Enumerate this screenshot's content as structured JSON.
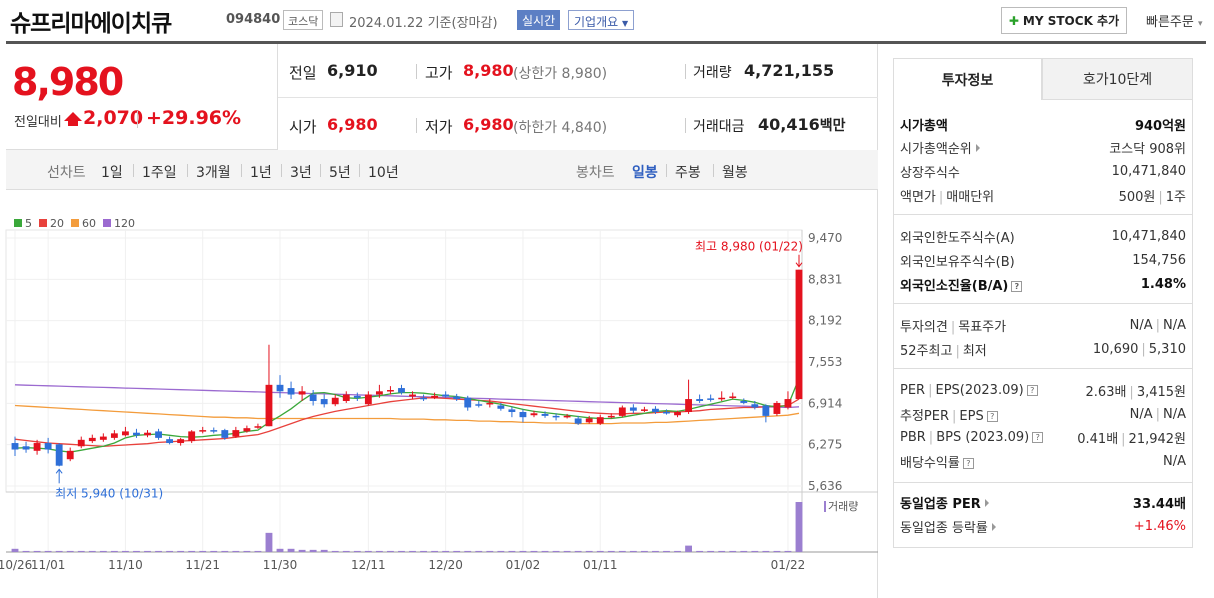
{
  "header": {
    "title": "슈프리마에이치큐",
    "code": "094840",
    "market": "코스닥",
    "date": "2024.01.22",
    "date_suffix": "기준(장마감)",
    "realtime": "실시간",
    "company_info": "기업개요",
    "mystock": "MY STOCK 추가",
    "quick_order": "빠른주문"
  },
  "price": {
    "current": "8,980",
    "prev_label": "전일대비",
    "change": "2,070",
    "pct": "+29.96%"
  },
  "info": {
    "prev_close_label": "전일",
    "prev_close": "6,910",
    "high_label": "고가",
    "high": "8,980",
    "upper_limit": "(상한가 8,980)",
    "volume_label": "거래량",
    "volume": "4,721,155",
    "open_label": "시가",
    "open": "6,980",
    "low_label": "저가",
    "low": "6,980",
    "lower_limit": "(하한가 4,840)",
    "amount_label": "거래대금",
    "amount": "40,416",
    "amount_unit": "백만"
  },
  "periods": {
    "line_label": "선차트",
    "line_items": [
      "1일",
      "1주일",
      "3개월",
      "1년",
      "3년",
      "5년",
      "10년"
    ],
    "candle_label": "봉차트",
    "candle_items": [
      "일봉",
      "주봉",
      "월봉"
    ],
    "candle_active": "일봉"
  },
  "chart_data": {
    "type": "candlestick",
    "legend": [
      {
        "name": "5",
        "color": "#3aa83a"
      },
      {
        "name": "20",
        "color": "#e8413c"
      },
      {
        "name": "60",
        "color": "#f39c3c"
      },
      {
        "name": "120",
        "color": "#9b6ad0"
      }
    ],
    "y_ticks": [
      "9,470",
      "8,831",
      "8,192",
      "7,553",
      "6,914",
      "6,275",
      "5,636"
    ],
    "ylim": [
      5636,
      9470
    ],
    "x_ticks": [
      "10/26",
      "11/01",
      "11/10",
      "11/21",
      "11/30",
      "12/11",
      "12/20",
      "01/02",
      "01/11",
      "01/22"
    ],
    "high_note": "최고 8,980 (01/22)",
    "low_note": "최저 5,940 (10/31)",
    "volume_label": "거래량",
    "candles": [
      {
        "o": 6300,
        "c": 6200,
        "h": 6400,
        "l": 6100
      },
      {
        "o": 6250,
        "c": 6200,
        "h": 6320,
        "l": 6150
      },
      {
        "o": 6180,
        "c": 6300,
        "h": 6350,
        "l": 6120
      },
      {
        "o": 6300,
        "c": 6200,
        "h": 6380,
        "l": 6140
      },
      {
        "o": 6280,
        "c": 5950,
        "h": 6300,
        "l": 5940
      },
      {
        "o": 6050,
        "c": 6180,
        "h": 6230,
        "l": 6020
      },
      {
        "o": 6250,
        "c": 6350,
        "h": 6400,
        "l": 6220
      },
      {
        "o": 6330,
        "c": 6380,
        "h": 6430,
        "l": 6300
      },
      {
        "o": 6350,
        "c": 6400,
        "h": 6450,
        "l": 6320
      },
      {
        "o": 6380,
        "c": 6450,
        "h": 6500,
        "l": 6350
      },
      {
        "o": 6420,
        "c": 6480,
        "h": 6550,
        "l": 6400
      },
      {
        "o": 6460,
        "c": 6420,
        "h": 6520,
        "l": 6380
      },
      {
        "o": 6420,
        "c": 6460,
        "h": 6500,
        "l": 6390
      },
      {
        "o": 6480,
        "c": 6380,
        "h": 6520,
        "l": 6350
      },
      {
        "o": 6360,
        "c": 6300,
        "h": 6400,
        "l": 6280
      },
      {
        "o": 6300,
        "c": 6360,
        "h": 6380,
        "l": 6260
      },
      {
        "o": 6330,
        "c": 6480,
        "h": 6500,
        "l": 6300
      },
      {
        "o": 6480,
        "c": 6500,
        "h": 6550,
        "l": 6450
      },
      {
        "o": 6500,
        "c": 6480,
        "h": 6540,
        "l": 6450
      },
      {
        "o": 6500,
        "c": 6380,
        "h": 6520,
        "l": 6350
      },
      {
        "o": 6400,
        "c": 6500,
        "h": 6550,
        "l": 6380
      },
      {
        "o": 6480,
        "c": 6530,
        "h": 6570,
        "l": 6460
      },
      {
        "o": 6550,
        "c": 6560,
        "h": 6600,
        "l": 6520
      },
      {
        "o": 6560,
        "c": 7200,
        "h": 7820,
        "l": 6560
      },
      {
        "o": 7200,
        "c": 7100,
        "h": 7350,
        "l": 7000
      },
      {
        "o": 7150,
        "c": 7050,
        "h": 7250,
        "l": 6980
      },
      {
        "o": 7050,
        "c": 7100,
        "h": 7180,
        "l": 6950
      },
      {
        "o": 7050,
        "c": 6950,
        "h": 7120,
        "l": 6880
      },
      {
        "o": 6980,
        "c": 6900,
        "h": 7050,
        "l": 6850
      },
      {
        "o": 6900,
        "c": 7000,
        "h": 7050,
        "l": 6870
      },
      {
        "o": 6950,
        "c": 7050,
        "h": 7100,
        "l": 6920
      },
      {
        "o": 7030,
        "c": 7000,
        "h": 7080,
        "l": 6950
      },
      {
        "o": 6900,
        "c": 7050,
        "h": 7100,
        "l": 6880
      },
      {
        "o": 7050,
        "c": 7100,
        "h": 7200,
        "l": 7000
      },
      {
        "o": 7100,
        "c": 7120,
        "h": 7180,
        "l": 7050
      },
      {
        "o": 7150,
        "c": 7080,
        "h": 7200,
        "l": 7050
      },
      {
        "o": 7020,
        "c": 7050,
        "h": 7100,
        "l": 6980
      },
      {
        "o": 7000,
        "c": 6980,
        "h": 7050,
        "l": 6950
      },
      {
        "o": 7000,
        "c": 7030,
        "h": 7080,
        "l": 6980
      },
      {
        "o": 7050,
        "c": 7020,
        "h": 7100,
        "l": 7000
      },
      {
        "o": 7020,
        "c": 6980,
        "h": 7060,
        "l": 6950
      },
      {
        "o": 7000,
        "c": 6850,
        "h": 7030,
        "l": 6800
      },
      {
        "o": 6900,
        "c": 6880,
        "h": 6950,
        "l": 6850
      },
      {
        "o": 6900,
        "c": 6920,
        "h": 6980,
        "l": 6850
      },
      {
        "o": 6880,
        "c": 6830,
        "h": 6920,
        "l": 6800
      },
      {
        "o": 6820,
        "c": 6780,
        "h": 6860,
        "l": 6700
      },
      {
        "o": 6780,
        "c": 6700,
        "h": 6820,
        "l": 6620
      },
      {
        "o": 6730,
        "c": 6760,
        "h": 6800,
        "l": 6700
      },
      {
        "o": 6750,
        "c": 6720,
        "h": 6790,
        "l": 6690
      },
      {
        "o": 6720,
        "c": 6700,
        "h": 6760,
        "l": 6650
      },
      {
        "o": 6700,
        "c": 6720,
        "h": 6750,
        "l": 6680
      },
      {
        "o": 6680,
        "c": 6600,
        "h": 6720,
        "l": 6580
      },
      {
        "o": 6620,
        "c": 6680,
        "h": 6720,
        "l": 6600
      },
      {
        "o": 6600,
        "c": 6700,
        "h": 6740,
        "l": 6580
      },
      {
        "o": 6700,
        "c": 6720,
        "h": 6760,
        "l": 6680
      },
      {
        "o": 6720,
        "c": 6850,
        "h": 6880,
        "l": 6700
      },
      {
        "o": 6850,
        "c": 6800,
        "h": 6900,
        "l": 6760
      },
      {
        "o": 6800,
        "c": 6820,
        "h": 6860,
        "l": 6780
      },
      {
        "o": 6830,
        "c": 6780,
        "h": 6870,
        "l": 6750
      },
      {
        "o": 6780,
        "c": 6760,
        "h": 6820,
        "l": 6740
      },
      {
        "o": 6730,
        "c": 6780,
        "h": 6800,
        "l": 6700
      },
      {
        "o": 6780,
        "c": 6980,
        "h": 7280,
        "l": 6750
      },
      {
        "o": 6980,
        "c": 6950,
        "h": 7050,
        "l": 6920
      },
      {
        "o": 6990,
        "c": 6970,
        "h": 7050,
        "l": 6940
      },
      {
        "o": 6980,
        "c": 7000,
        "h": 7100,
        "l": 6950
      },
      {
        "o": 7020,
        "c": 7020,
        "h": 7080,
        "l": 6980
      },
      {
        "o": 6950,
        "c": 6920,
        "h": 6990,
        "l": 6900
      },
      {
        "o": 6900,
        "c": 6850,
        "h": 6950,
        "l": 6820
      },
      {
        "o": 6880,
        "c": 6720,
        "h": 6900,
        "l": 6620
      },
      {
        "o": 6750,
        "c": 6920,
        "h": 6950,
        "l": 6720
      },
      {
        "o": 6850,
        "c": 6980,
        "h": 7100,
        "l": 6820
      },
      {
        "o": 6980,
        "c": 8980,
        "h": 8980,
        "l": 6980
      }
    ],
    "volume_values": [
      3,
      1,
      1,
      1,
      1,
      1,
      1,
      1,
      1,
      1,
      1,
      1,
      1,
      1,
      1,
      1,
      1,
      1,
      1,
      1,
      1,
      1,
      1,
      18,
      3,
      3,
      2,
      2,
      2,
      1,
      1,
      1,
      1,
      1,
      1,
      1,
      1,
      1,
      1,
      1,
      1,
      1,
      1,
      1,
      1,
      1,
      1,
      1,
      1,
      1,
      1,
      1,
      1,
      1,
      1,
      1,
      1,
      1,
      1,
      1,
      1,
      6,
      1,
      1,
      1,
      1,
      1,
      1,
      1,
      1,
      1,
      47
    ],
    "ma5": [
      6220,
      6230,
      6220,
      6210,
      6180,
      6160,
      6190,
      6220,
      6250,
      6300,
      6380,
      6420,
      6430,
      6440,
      6420,
      6400,
      6390,
      6400,
      6420,
      6430,
      6450,
      6480,
      6500,
      6620,
      6720,
      6830,
      6960,
      7070,
      7080,
      7050,
      7000,
      6990,
      7010,
      7030,
      7060,
      7080,
      7080,
      7070,
      7050,
      7030,
      7020,
      6990,
      6960,
      6930,
      6900,
      6860,
      6820,
      6790,
      6770,
      6750,
      6730,
      6710,
      6690,
      6680,
      6680,
      6700,
      6730,
      6760,
      6790,
      6800,
      6790,
      6820,
      6860,
      6900,
      6940,
      6980,
      6960,
      6930,
      6880,
      6860,
      6880,
      7300
    ],
    "ma20": [
      6360,
      6340,
      6320,
      6300,
      6290,
      6280,
      6270,
      6260,
      6250,
      6260,
      6270,
      6280,
      6290,
      6310,
      6320,
      6330,
      6340,
      6350,
      6360,
      6370,
      6390,
      6410,
      6430,
      6480,
      6540,
      6600,
      6660,
      6710,
      6750,
      6790,
      6820,
      6850,
      6880,
      6910,
      6940,
      6960,
      6980,
      7000,
      7000,
      6990,
      6980,
      6970,
      6960,
      6950,
      6930,
      6910,
      6890,
      6870,
      6850,
      6830,
      6810,
      6790,
      6770,
      6760,
      6750,
      6750,
      6760,
      6760,
      6770,
      6780,
      6780,
      6790,
      6800,
      6820,
      6830,
      6840,
      6850,
      6850,
      6860,
      6870,
      6880,
      6980
    ],
    "ma60": [
      6880,
      6870,
      6860,
      6850,
      6840,
      6830,
      6820,
      6810,
      6800,
      6790,
      6780,
      6770,
      6760,
      6750,
      6740,
      6730,
      6720,
      6710,
      6700,
      6700,
      6690,
      6690,
      6680,
      6680,
      6680,
      6680,
      6680,
      6680,
      6680,
      6680,
      6680,
      6680,
      6680,
      6680,
      6680,
      6670,
      6670,
      6670,
      6660,
      6660,
      6650,
      6650,
      6640,
      6640,
      6630,
      6630,
      6620,
      6620,
      6610,
      6610,
      6610,
      6600,
      6600,
      6600,
      6600,
      6610,
      6610,
      6610,
      6620,
      6620,
      6630,
      6640,
      6650,
      6660,
      6670,
      6680,
      6690,
      6700,
      6710,
      6720,
      6730,
      6760
    ],
    "ma120": [
      7200,
      7195,
      7190,
      7185,
      7180,
      7175,
      7170,
      7165,
      7160,
      7155,
      7150,
      7145,
      7140,
      7135,
      7130,
      7125,
      7120,
      7115,
      7110,
      7105,
      7100,
      7095,
      7090,
      7085,
      7080,
      7075,
      7070,
      7065,
      7060,
      7055,
      7050,
      7045,
      7040,
      7035,
      7030,
      7025,
      7020,
      7015,
      7010,
      7005,
      7000,
      6995,
      6990,
      6985,
      6980,
      6975,
      6970,
      6965,
      6960,
      6955,
      6950,
      6945,
      6940,
      6935,
      6930,
      6925,
      6920,
      6915,
      6910,
      6905,
      6900,
      6895,
      6890,
      6885,
      6880,
      6875,
      6870,
      6865,
      6860,
      6855,
      6850,
      6860
    ]
  },
  "invest": {
    "tab_active": "투자정보",
    "tab_other": "호가10단계",
    "market_cap_label": "시가총액",
    "market_cap": "940억원",
    "cap_rank_label": "시가총액순위",
    "cap_rank": "코스닥 908위",
    "shares_label": "상장주식수",
    "shares": "10,471,840",
    "par_label": "액면가",
    "unit_label": "매매단위",
    "par": "500원",
    "unit": "1주",
    "foreign_limit_label": "외국인한도주식수(A)",
    "foreign_limit": "10,471,840",
    "foreign_hold_label": "외국인보유주식수(B)",
    "foreign_hold": "154,756",
    "foreign_ratio_label": "외국인소진율(B/A)",
    "foreign_ratio": "1.48%",
    "opinion_label": "투자의견",
    "target_label": "목표주가",
    "opinion": "N/A",
    "target": "N/A",
    "w52_high_label": "52주최고",
    "w52_low_label": "최저",
    "w52_high": "10,690",
    "w52_low": "5,310",
    "per_label": "PER",
    "eps_label": "EPS(2023.09)",
    "per": "2.63배",
    "eps": "3,415원",
    "est_per_label": "추정PER",
    "est_eps_label": "EPS",
    "est_per": "N/A",
    "est_eps": "N/A",
    "pbr_label": "PBR",
    "bps_label": "BPS (2023.09)",
    "pbr": "0.41배",
    "bps": "21,942원",
    "div_label": "배당수익률",
    "div": "N/A",
    "ind_per_label": "동일업종 PER",
    "ind_per": "33.44배",
    "ind_change_label": "동일업종 등락률",
    "ind_change": "+1.46%",
    "help_icon": "?"
  }
}
